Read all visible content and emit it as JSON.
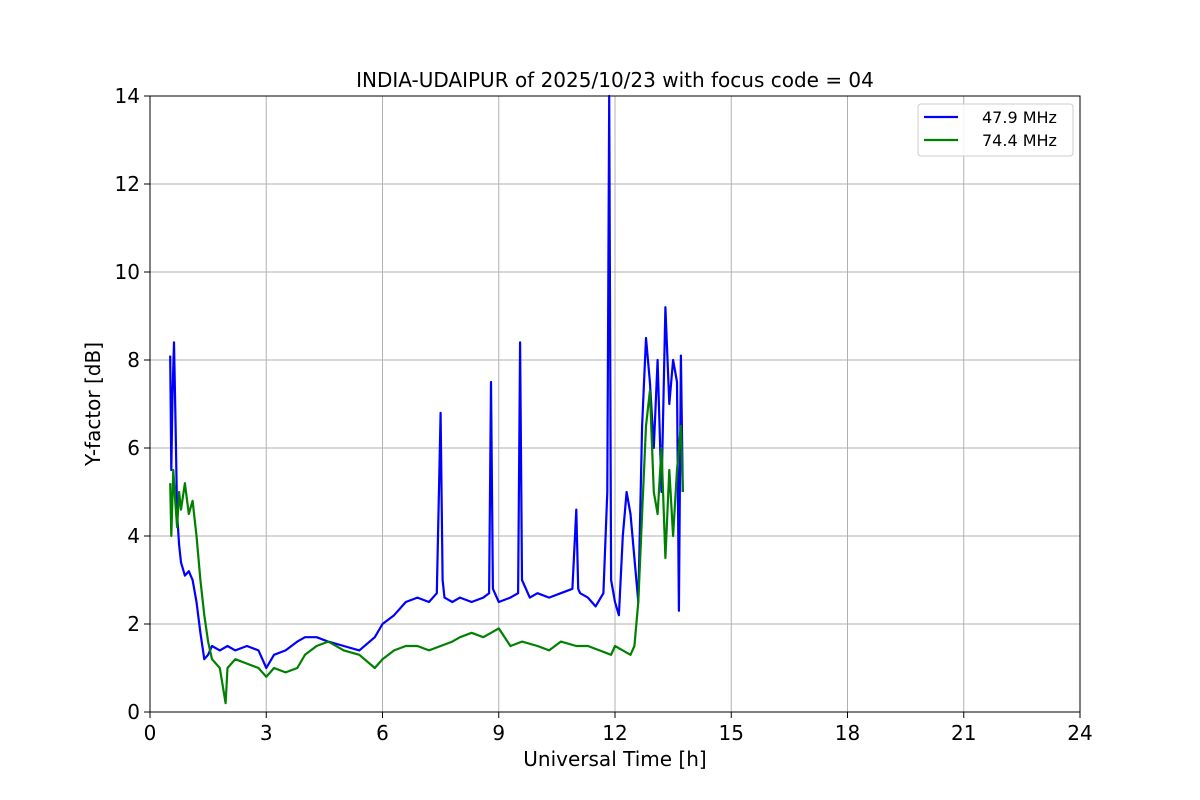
{
  "chart_data": {
    "type": "line",
    "title": "INDIA-UDAIPUR of 2025/10/23 with focus code = 04",
    "xlabel": "Universal Time [h]",
    "ylabel": "Y-factor [dB]",
    "xlim": [
      0,
      24
    ],
    "ylim": [
      0,
      14
    ],
    "xticks": [
      0,
      3,
      6,
      9,
      12,
      15,
      18,
      21,
      24
    ],
    "yticks": [
      0,
      2,
      4,
      6,
      8,
      10,
      12,
      14
    ],
    "grid": true,
    "legend_position": "top-right",
    "series": [
      {
        "name": "47.9 MHz",
        "color": "#0000ff",
        "x": [
          0.52,
          0.55,
          0.58,
          0.62,
          0.66,
          0.7,
          0.75,
          0.8,
          0.9,
          1.0,
          1.1,
          1.2,
          1.3,
          1.4,
          1.5,
          1.6,
          1.8,
          2.0,
          2.2,
          2.5,
          2.8,
          3.0,
          3.2,
          3.5,
          3.8,
          4.0,
          4.3,
          4.6,
          5.0,
          5.4,
          5.8,
          6.0,
          6.3,
          6.6,
          6.9,
          7.2,
          7.4,
          7.5,
          7.55,
          7.6,
          7.8,
          8.0,
          8.3,
          8.6,
          8.75,
          8.8,
          8.85,
          9.0,
          9.3,
          9.5,
          9.55,
          9.6,
          9.8,
          10.0,
          10.3,
          10.6,
          10.9,
          11.0,
          11.05,
          11.1,
          11.3,
          11.5,
          11.7,
          11.8,
          11.85,
          11.9,
          12.0,
          12.1,
          12.2,
          12.3,
          12.4,
          12.5,
          12.6,
          12.7,
          12.8,
          12.9,
          13.0,
          13.1,
          13.2,
          13.3,
          13.4,
          13.5,
          13.6,
          13.65,
          13.7,
          13.75
        ],
        "values": [
          8.1,
          5.5,
          7.2,
          8.4,
          6.5,
          4.5,
          3.8,
          3.4,
          3.1,
          3.2,
          3.0,
          2.5,
          1.8,
          1.2,
          1.3,
          1.5,
          1.4,
          1.5,
          1.4,
          1.5,
          1.4,
          1.0,
          1.3,
          1.4,
          1.6,
          1.7,
          1.7,
          1.6,
          1.5,
          1.4,
          1.7,
          2.0,
          2.2,
          2.5,
          2.6,
          2.5,
          2.7,
          6.8,
          3.0,
          2.6,
          2.5,
          2.6,
          2.5,
          2.6,
          2.7,
          7.5,
          2.8,
          2.5,
          2.6,
          2.7,
          8.4,
          3.0,
          2.6,
          2.7,
          2.6,
          2.7,
          2.8,
          4.6,
          2.8,
          2.7,
          2.6,
          2.4,
          2.7,
          5.0,
          14.0,
          3.0,
          2.5,
          2.2,
          4.0,
          5.0,
          4.5,
          3.5,
          2.5,
          6.5,
          8.5,
          7.5,
          6.0,
          8.0,
          5.0,
          9.2,
          7.0,
          8.0,
          7.5,
          2.3,
          8.1,
          5.0
        ]
      },
      {
        "name": "74.4 MHz",
        "color": "#008000",
        "x": [
          0.52,
          0.55,
          0.6,
          0.65,
          0.7,
          0.75,
          0.8,
          0.9,
          1.0,
          1.1,
          1.2,
          1.3,
          1.4,
          1.5,
          1.6,
          1.8,
          1.95,
          2.0,
          2.2,
          2.5,
          2.8,
          3.0,
          3.2,
          3.5,
          3.8,
          4.0,
          4.3,
          4.6,
          5.0,
          5.4,
          5.8,
          6.0,
          6.3,
          6.6,
          6.9,
          7.2,
          7.5,
          7.8,
          8.0,
          8.3,
          8.6,
          9.0,
          9.3,
          9.6,
          10.0,
          10.3,
          10.6,
          11.0,
          11.3,
          11.6,
          11.9,
          12.0,
          12.2,
          12.4,
          12.5,
          12.6,
          12.7,
          12.8,
          12.9,
          13.0,
          13.1,
          13.2,
          13.3,
          13.4,
          13.5,
          13.6,
          13.7,
          13.75
        ],
        "values": [
          5.2,
          4.0,
          5.5,
          4.8,
          4.2,
          5.0,
          4.6,
          5.2,
          4.5,
          4.8,
          4.0,
          3.0,
          2.2,
          1.6,
          1.2,
          1.0,
          0.2,
          1.0,
          1.2,
          1.1,
          1.0,
          0.8,
          1.0,
          0.9,
          1.0,
          1.3,
          1.5,
          1.6,
          1.4,
          1.3,
          1.0,
          1.2,
          1.4,
          1.5,
          1.5,
          1.4,
          1.5,
          1.6,
          1.7,
          1.8,
          1.7,
          1.9,
          1.5,
          1.6,
          1.5,
          1.4,
          1.6,
          1.5,
          1.5,
          1.4,
          1.3,
          1.5,
          1.4,
          1.3,
          1.5,
          2.5,
          4.5,
          6.5,
          7.3,
          5.0,
          4.5,
          6.0,
          3.5,
          5.5,
          4.0,
          5.5,
          6.5,
          5.0
        ]
      }
    ]
  }
}
